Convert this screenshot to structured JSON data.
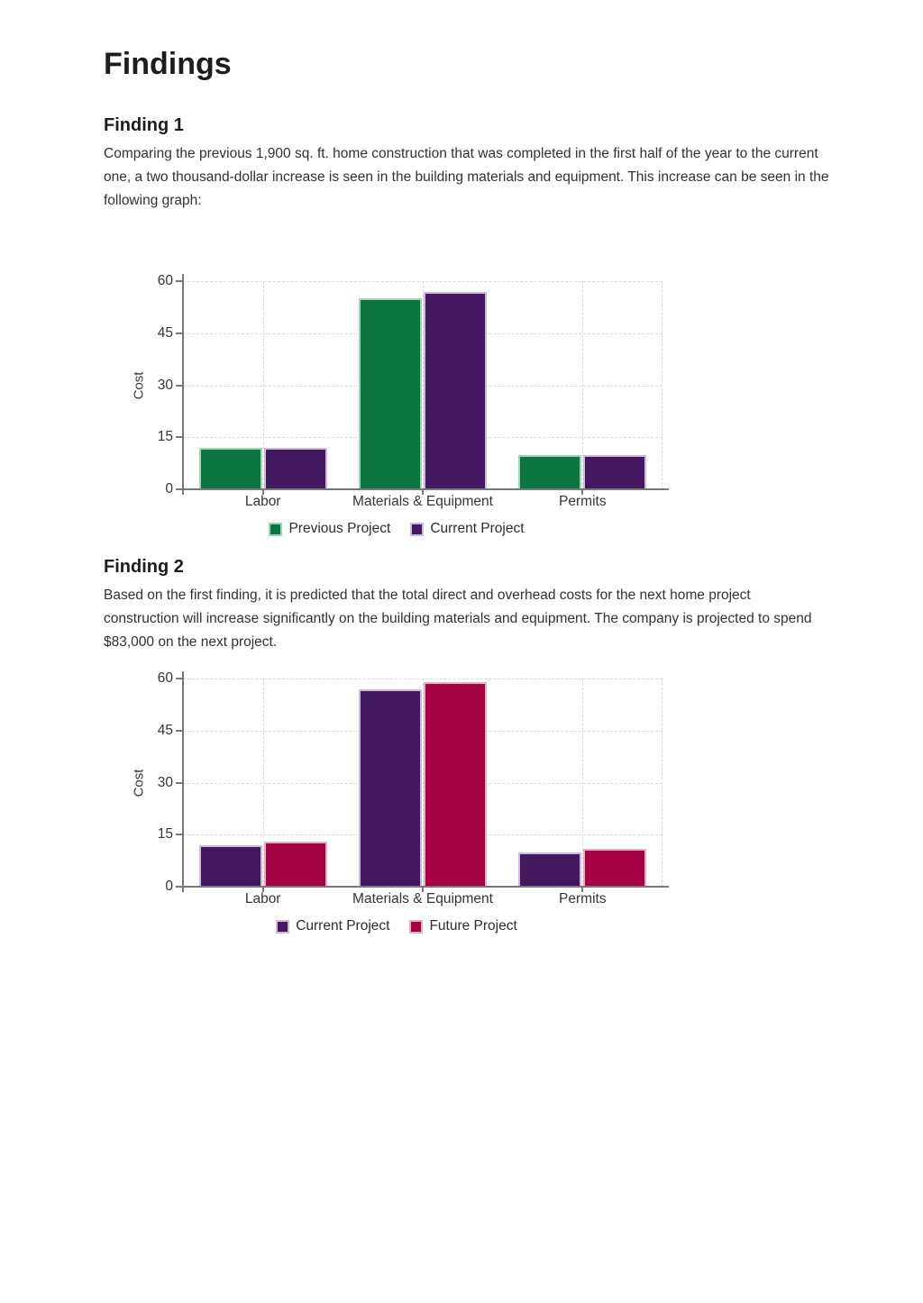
{
  "title": "Findings",
  "findings": [
    {
      "heading": "Finding 1",
      "body": "Comparing the previous 1,900 sq. ft. home construction that was completed in the first half of the year to the current one, a two thousand-dollar increase is seen in the building materials and equipment. This increase can be seen in the following graph:"
    },
    {
      "heading": "Finding 2",
      "body": "Based on the first finding, it is predicted that the total direct and overhead costs for the next home project construction will increase significantly on the building materials and equipment. The company is projected to spend $83,000 on the next project."
    }
  ],
  "chart_data": [
    {
      "type": "bar",
      "title": "",
      "categories": [
        "Labor",
        "Materials & Equipment",
        "Permits"
      ],
      "series": [
        {
          "name": "Previous Project",
          "values": [
            12,
            55,
            10
          ],
          "color": "#0a7540",
          "border_color": "#9fd4b6"
        },
        {
          "name": "Current Project",
          "values": [
            12,
            57,
            10
          ],
          "color": "#441761",
          "border_color": "#cbbada"
        }
      ],
      "xlabel": "",
      "ylabel": "Cost",
      "ylim": [
        0,
        60
      ],
      "yticks": [
        0,
        15,
        30,
        45,
        60
      ],
      "grid": true,
      "legend_position": "bottom"
    },
    {
      "type": "bar",
      "title": "",
      "categories": [
        "Labor",
        "Materials & Equipment",
        "Permits"
      ],
      "series": [
        {
          "name": "Current Project",
          "values": [
            12,
            57,
            10
          ],
          "color": "#441761",
          "border_color": "#cbbada"
        },
        {
          "name": "Future Project",
          "values": [
            13,
            59,
            11
          ],
          "color": "#a40243",
          "border_color": "#e6aec3"
        }
      ],
      "xlabel": "",
      "ylabel": "Cost",
      "ylim": [
        0,
        60
      ],
      "yticks": [
        0,
        15,
        30,
        45,
        60
      ],
      "grid": true,
      "legend_position": "bottom"
    }
  ]
}
